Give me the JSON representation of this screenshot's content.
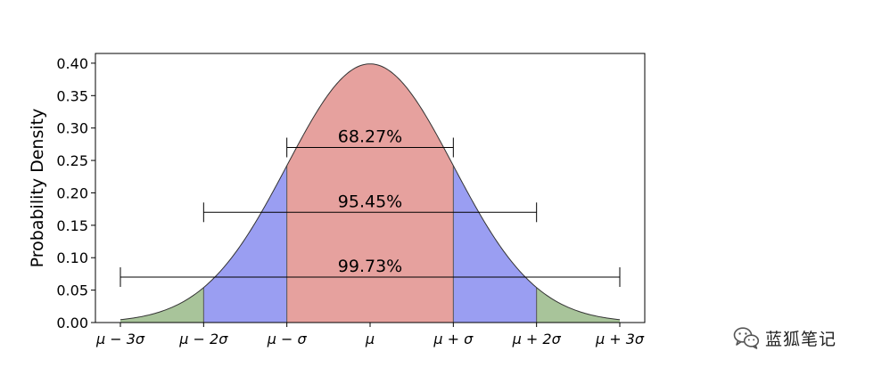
{
  "chart_data": {
    "type": "area",
    "distribution": "normal",
    "mu": 0,
    "sigma": 1,
    "x_range": [
      -3,
      3
    ],
    "ylabel": "Probability Density",
    "xlabel": "",
    "ylim": [
      0.0,
      0.4
    ],
    "yticks": [
      "0.00",
      "0.05",
      "0.10",
      "0.15",
      "0.20",
      "0.25",
      "0.30",
      "0.35",
      "0.40"
    ],
    "ytick_values": [
      0.0,
      0.05,
      0.1,
      0.15,
      0.2,
      0.25,
      0.3,
      0.35,
      0.4
    ],
    "xtick_values": [
      -3,
      -2,
      -1,
      0,
      1,
      2,
      3
    ],
    "xticks": [
      "μ − 3σ",
      "μ − 2σ",
      "μ − σ",
      "μ",
      "μ + σ",
      "μ + 2σ",
      "μ + 3σ"
    ],
    "regions": [
      {
        "from": -1,
        "to": 1,
        "color": "#e6a19e"
      },
      {
        "from": -2,
        "to": -1,
        "color": "#9a9ef2"
      },
      {
        "from": 1,
        "to": 2,
        "color": "#9a9ef2"
      },
      {
        "from": -3,
        "to": -2,
        "color": "#a8c49a"
      },
      {
        "from": 2,
        "to": 3,
        "color": "#a8c49a"
      }
    ],
    "intervals": [
      {
        "label": "68.27%",
        "from": -1,
        "to": 1,
        "y": 0.27
      },
      {
        "label": "95.45%",
        "from": -2,
        "to": 2,
        "y": 0.17
      },
      {
        "label": "99.73%",
        "from": -3,
        "to": 3,
        "y": 0.07
      }
    ],
    "grid": false,
    "legend": "none"
  },
  "watermark": {
    "text": "蓝狐笔记",
    "icon": "wechat-icon"
  }
}
